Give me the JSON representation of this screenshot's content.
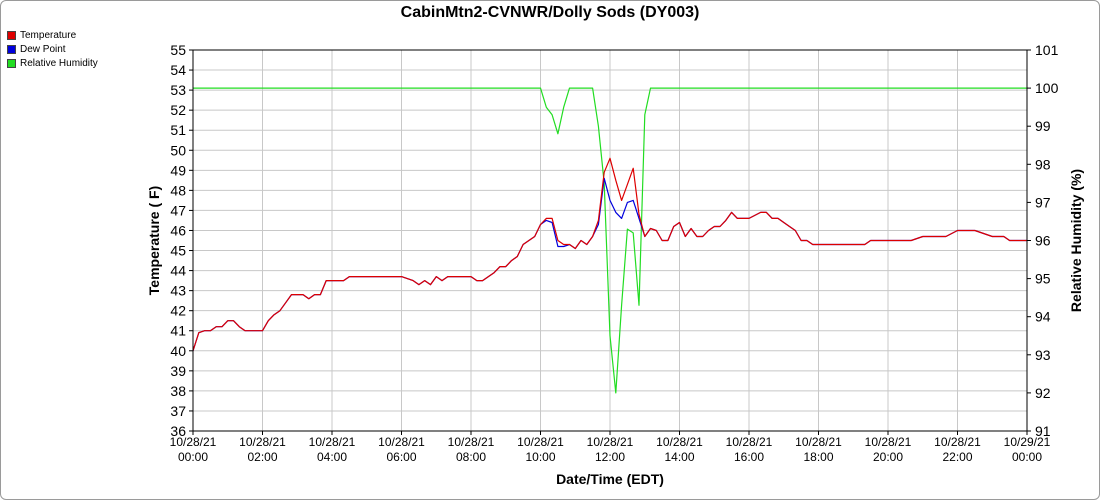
{
  "chart_data": {
    "type": "line",
    "title": "CabinMtn2-CVNWR/Dolly Sods (DY003)",
    "xlabel": "Date/Time (EDT)",
    "ylabel": "Temperature ( F)",
    "y2label": "Relative Humidity (%)",
    "ylim": [
      36,
      55
    ],
    "y2lim": [
      91,
      101
    ],
    "xlim_hours": [
      0,
      24
    ],
    "grid": true,
    "legend_position": "top-left",
    "y_ticks": [
      "36",
      "37",
      "38",
      "39",
      "40",
      "41",
      "42",
      "43",
      "44",
      "45",
      "46",
      "47",
      "48",
      "49",
      "50",
      "51",
      "52",
      "53",
      "54",
      "55"
    ],
    "y2_ticks": [
      "91",
      "92",
      "93",
      "94",
      "95",
      "96",
      "97",
      "98",
      "99",
      "100",
      "101"
    ],
    "x_ticks": [
      {
        "date": "10/28/21",
        "time": "00:00"
      },
      {
        "date": "10/28/21",
        "time": "02:00"
      },
      {
        "date": "10/28/21",
        "time": "04:00"
      },
      {
        "date": "10/28/21",
        "time": "06:00"
      },
      {
        "date": "10/28/21",
        "time": "08:00"
      },
      {
        "date": "10/28/21",
        "time": "10:00"
      },
      {
        "date": "10/28/21",
        "time": "12:00"
      },
      {
        "date": "10/28/21",
        "time": "14:00"
      },
      {
        "date": "10/28/21",
        "time": "16:00"
      },
      {
        "date": "10/28/21",
        "time": "18:00"
      },
      {
        "date": "10/28/21",
        "time": "20:00"
      },
      {
        "date": "10/28/21",
        "time": "22:00"
      },
      {
        "date": "10/29/21",
        "time": "00:00"
      }
    ],
    "series": [
      {
        "name": "Temperature",
        "color": "#dd0000",
        "axis": "left",
        "x": [
          "10/28/21 00:00",
          "10/28/21 00:10",
          "10/28/21 00:20",
          "10/28/21 00:30",
          "10/28/21 00:40",
          "10/28/21 00:50",
          "10/28/21 01:00",
          "10/28/21 01:10",
          "10/28/21 01:20",
          "10/28/21 01:30",
          "10/28/21 01:40",
          "10/28/21 02:00",
          "10/28/21 02:10",
          "10/28/21 02:20",
          "10/28/21 02:30",
          "10/28/21 02:40",
          "10/28/21 02:50",
          "10/28/21 03:00",
          "10/28/21 03:10",
          "10/28/21 03:20",
          "10/28/21 03:30",
          "10/28/21 03:40",
          "10/28/21 03:50",
          "10/28/21 04:00",
          "10/28/21 04:20",
          "10/28/21 04:30",
          "10/28/21 05:00",
          "10/28/21 06:00",
          "10/28/21 06:20",
          "10/28/21 06:30",
          "10/28/21 06:40",
          "10/28/21 06:50",
          "10/28/21 07:00",
          "10/28/21 07:10",
          "10/28/21 07:20",
          "10/28/21 07:30",
          "10/28/21 08:00",
          "10/28/21 08:10",
          "10/28/21 08:20",
          "10/28/21 08:30",
          "10/28/21 08:40",
          "10/28/21 08:50",
          "10/28/21 09:00",
          "10/28/21 09:10",
          "10/28/21 09:20",
          "10/28/21 09:30",
          "10/28/21 09:40",
          "10/28/21 09:50",
          "10/28/21 10:00",
          "10/28/21 10:10",
          "10/28/21 10:20",
          "10/28/21 10:30",
          "10/28/21 10:40",
          "10/28/21 10:50",
          "10/28/21 11:00",
          "10/28/21 11:10",
          "10/28/21 11:20",
          "10/28/21 11:30",
          "10/28/21 11:40",
          "10/28/21 11:50",
          "10/28/21 12:00",
          "10/28/21 12:10",
          "10/28/21 12:20",
          "10/28/21 12:30",
          "10/28/21 12:40",
          "10/28/21 12:50",
          "10/28/21 13:00",
          "10/28/21 13:10",
          "10/28/21 13:20",
          "10/28/21 13:30",
          "10/28/21 13:40",
          "10/28/21 13:50",
          "10/28/21 14:00",
          "10/28/21 14:10",
          "10/28/21 14:20",
          "10/28/21 14:30",
          "10/28/21 14:40",
          "10/28/21 14:50",
          "10/28/21 15:00",
          "10/28/21 15:10",
          "10/28/21 15:20",
          "10/28/21 15:30",
          "10/28/21 15:40",
          "10/28/21 15:50",
          "10/28/21 16:00",
          "10/28/21 16:20",
          "10/28/21 16:30",
          "10/28/21 16:40",
          "10/28/21 16:50",
          "10/28/21 17:00",
          "10/28/21 17:10",
          "10/28/21 17:20",
          "10/28/21 17:30",
          "10/28/21 17:40",
          "10/28/21 17:50",
          "10/28/21 18:00",
          "10/28/21 18:30",
          "10/28/21 19:00",
          "10/28/21 19:20",
          "10/28/21 19:30",
          "10/28/21 20:00",
          "10/28/21 20:30",
          "10/28/21 20:40",
          "10/28/21 21:00",
          "10/28/21 21:30",
          "10/28/21 21:40",
          "10/28/21 22:00",
          "10/28/21 22:20",
          "10/28/21 22:30",
          "10/28/21 23:00",
          "10/28/21 23:20",
          "10/28/21 23:30",
          "10/29/21 00:00"
        ],
        "values": [
          40.0,
          40.9,
          41.0,
          41.0,
          41.2,
          41.2,
          41.5,
          41.5,
          41.2,
          41.0,
          41.0,
          41.0,
          41.5,
          41.8,
          42.0,
          42.4,
          42.8,
          42.8,
          42.8,
          42.6,
          42.8,
          42.8,
          43.5,
          43.5,
          43.5,
          43.7,
          43.7,
          43.7,
          43.5,
          43.3,
          43.5,
          43.3,
          43.7,
          43.5,
          43.7,
          43.7,
          43.7,
          43.5,
          43.5,
          43.7,
          43.9,
          44.2,
          44.2,
          44.5,
          44.7,
          45.3,
          45.5,
          45.7,
          46.3,
          46.6,
          46.6,
          45.5,
          45.3,
          45.3,
          45.1,
          45.5,
          45.3,
          45.7,
          46.5,
          48.9,
          49.6,
          48.5,
          47.5,
          48.3,
          49.1,
          46.8,
          45.7,
          46.1,
          46.0,
          45.5,
          45.5,
          46.2,
          46.4,
          45.7,
          46.1,
          45.7,
          45.7,
          46.0,
          46.2,
          46.2,
          46.5,
          46.9,
          46.6,
          46.6,
          46.6,
          46.9,
          46.9,
          46.6,
          46.6,
          46.4,
          46.2,
          46.0,
          45.5,
          45.5,
          45.3,
          45.3,
          45.3,
          45.3,
          45.3,
          45.5,
          45.5,
          45.5,
          45.5,
          45.7,
          45.7,
          45.7,
          46.0,
          46.0,
          46.0,
          45.7,
          45.7,
          45.5,
          45.5
        ]
      },
      {
        "name": "Dew Point",
        "color": "#0000dd",
        "axis": "left",
        "x": [
          "10/28/21 00:00",
          "10/28/21 00:10",
          "10/28/21 00:20",
          "10/28/21 00:30",
          "10/28/21 00:40",
          "10/28/21 00:50",
          "10/28/21 01:00",
          "10/28/21 01:10",
          "10/28/21 01:20",
          "10/28/21 01:30",
          "10/28/21 01:40",
          "10/28/21 02:00",
          "10/28/21 02:10",
          "10/28/21 02:20",
          "10/28/21 02:30",
          "10/28/21 02:40",
          "10/28/21 02:50",
          "10/28/21 03:00",
          "10/28/21 03:10",
          "10/28/21 03:20",
          "10/28/21 03:30",
          "10/28/21 03:40",
          "10/28/21 03:50",
          "10/28/21 04:00",
          "10/28/21 04:20",
          "10/28/21 04:30",
          "10/28/21 05:00",
          "10/28/21 06:00",
          "10/28/21 06:20",
          "10/28/21 06:30",
          "10/28/21 06:40",
          "10/28/21 06:50",
          "10/28/21 07:00",
          "10/28/21 07:10",
          "10/28/21 07:20",
          "10/28/21 07:30",
          "10/28/21 08:00",
          "10/28/21 08:10",
          "10/28/21 08:20",
          "10/28/21 08:30",
          "10/28/21 08:40",
          "10/28/21 08:50",
          "10/28/21 09:00",
          "10/28/21 09:10",
          "10/28/21 09:20",
          "10/28/21 09:30",
          "10/28/21 09:40",
          "10/28/21 09:50",
          "10/28/21 10:00",
          "10/28/21 10:10",
          "10/28/21 10:20",
          "10/28/21 10:30",
          "10/28/21 10:40",
          "10/28/21 10:50",
          "10/28/21 11:00",
          "10/28/21 11:10",
          "10/28/21 11:20",
          "10/28/21 11:30",
          "10/28/21 11:40",
          "10/28/21 11:50",
          "10/28/21 12:00",
          "10/28/21 12:10",
          "10/28/21 12:20",
          "10/28/21 12:30",
          "10/28/21 12:40",
          "10/28/21 12:50",
          "10/28/21 13:00",
          "10/28/21 13:10",
          "10/28/21 13:20",
          "10/28/21 13:30",
          "10/28/21 13:40",
          "10/28/21 13:50",
          "10/28/21 14:00",
          "10/28/21 14:10",
          "10/28/21 14:20",
          "10/28/21 14:30",
          "10/28/21 14:40",
          "10/28/21 14:50",
          "10/28/21 15:00",
          "10/28/21 15:10",
          "10/28/21 15:20",
          "10/28/21 15:30",
          "10/28/21 15:40",
          "10/28/21 15:50",
          "10/28/21 16:00",
          "10/28/21 16:20",
          "10/28/21 16:30",
          "10/28/21 16:40",
          "10/28/21 16:50",
          "10/28/21 17:00",
          "10/28/21 17:10",
          "10/28/21 17:20",
          "10/28/21 17:30",
          "10/28/21 17:40",
          "10/28/21 17:50",
          "10/28/21 18:00",
          "10/28/21 18:30",
          "10/28/21 19:00",
          "10/28/21 19:20",
          "10/28/21 19:30",
          "10/28/21 20:00",
          "10/28/21 20:30",
          "10/28/21 20:40",
          "10/28/21 21:00",
          "10/28/21 21:30",
          "10/28/21 21:40",
          "10/28/21 22:00",
          "10/28/21 22:20",
          "10/28/21 22:30",
          "10/28/21 23:00",
          "10/28/21 23:20",
          "10/28/21 23:30",
          "10/29/21 00:00"
        ],
        "values": [
          40.0,
          40.9,
          41.0,
          41.0,
          41.2,
          41.2,
          41.5,
          41.5,
          41.2,
          41.0,
          41.0,
          41.0,
          41.5,
          41.8,
          42.0,
          42.4,
          42.8,
          42.8,
          42.8,
          42.6,
          42.8,
          42.8,
          43.5,
          43.5,
          43.5,
          43.7,
          43.7,
          43.7,
          43.5,
          43.3,
          43.5,
          43.3,
          43.7,
          43.5,
          43.7,
          43.7,
          43.7,
          43.5,
          43.5,
          43.7,
          43.9,
          44.2,
          44.2,
          44.5,
          44.7,
          45.3,
          45.5,
          45.7,
          46.3,
          46.5,
          46.4,
          45.2,
          45.2,
          45.3,
          45.1,
          45.5,
          45.3,
          45.7,
          46.3,
          48.6,
          47.5,
          46.9,
          46.6,
          47.4,
          47.5,
          46.6,
          45.7,
          46.1,
          46.0,
          45.5,
          45.5,
          46.2,
          46.4,
          45.7,
          46.1,
          45.7,
          45.7,
          46.0,
          46.2,
          46.2,
          46.5,
          46.9,
          46.6,
          46.6,
          46.6,
          46.9,
          46.9,
          46.6,
          46.6,
          46.4,
          46.2,
          46.0,
          45.5,
          45.5,
          45.3,
          45.3,
          45.3,
          45.3,
          45.3,
          45.5,
          45.5,
          45.5,
          45.5,
          45.7,
          45.7,
          45.7,
          46.0,
          46.0,
          46.0,
          45.7,
          45.7,
          45.5,
          45.5
        ]
      },
      {
        "name": "Relative Humidity",
        "color": "#22dd22",
        "axis": "right",
        "x": [
          "10/28/21 00:00",
          "10/28/21 10:00",
          "10/28/21 10:10",
          "10/28/21 10:20",
          "10/28/21 10:30",
          "10/28/21 10:40",
          "10/28/21 10:50",
          "10/28/21 11:00",
          "10/28/21 11:30",
          "10/28/21 11:40",
          "10/28/21 11:50",
          "10/28/21 12:00",
          "10/28/21 12:10",
          "10/28/21 12:20",
          "10/28/21 12:30",
          "10/28/21 12:40",
          "10/28/21 12:50",
          "10/28/21 13:00",
          "10/28/21 13:10",
          "10/29/21 00:00"
        ],
        "values": [
          100,
          100,
          99.5,
          99.3,
          98.8,
          99.5,
          100,
          100,
          100,
          99.0,
          97.5,
          93.5,
          92.0,
          94.3,
          96.3,
          96.2,
          94.3,
          99.3,
          100,
          100
        ]
      }
    ]
  }
}
